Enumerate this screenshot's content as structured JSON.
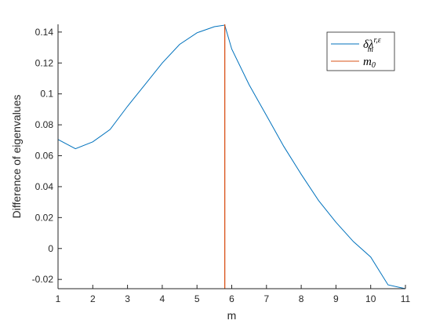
{
  "chart_data": {
    "type": "line",
    "xlabel": "m",
    "ylabel": "Difference of eigenvalues",
    "xlim": [
      1,
      11
    ],
    "ylim": [
      -0.026,
      0.145
    ],
    "grid": false,
    "legend_placement": "top-right",
    "x_ticks": [
      "1",
      "2",
      "3",
      "4",
      "5",
      "6",
      "7",
      "8",
      "9",
      "10",
      "11"
    ],
    "y_ticks": [
      "-0.02",
      "0",
      "0.02",
      "0.04",
      "0.06",
      "0.08",
      "0.1",
      "0.12",
      "0.14"
    ],
    "series": [
      {
        "name": "δλ_m^{r,ε}",
        "color": "#0072BD",
        "kind": "line",
        "x": [
          1,
          1.5,
          2,
          2.5,
          3,
          3.5,
          4,
          4.5,
          5,
          5.5,
          5.8,
          6,
          6.5,
          7,
          7.5,
          8,
          8.5,
          9,
          9.5,
          10,
          10.5,
          11
        ],
        "y": [
          0.0705,
          0.0645,
          0.069,
          0.077,
          0.092,
          0.106,
          0.12,
          0.132,
          0.1395,
          0.1435,
          0.1445,
          0.129,
          0.106,
          0.086,
          0.066,
          0.048,
          0.031,
          0.017,
          0.0045,
          -0.0055,
          -0.0235,
          -0.026
        ]
      },
      {
        "name": "m_0",
        "color": "#D95319",
        "kind": "vline",
        "x": 5.8
      }
    ]
  },
  "legend": {
    "entry1_main": "δλ",
    "entry1_sup": "r,ε",
    "entry1_sub": "m",
    "entry2_main": "m",
    "entry2_sub": "0"
  }
}
